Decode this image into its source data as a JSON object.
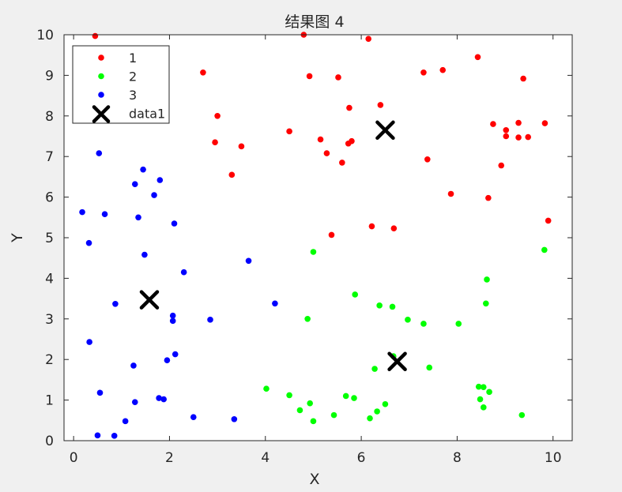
{
  "chart_data": {
    "type": "scatter",
    "title": "结果图 4",
    "xlabel": "X",
    "ylabel": "Y",
    "xlim": [
      -0.2,
      10.4
    ],
    "ylim": [
      0,
      10
    ],
    "xticks": [
      "0",
      "2",
      "4",
      "6",
      "8",
      "10"
    ],
    "yticks": [
      "0",
      "1",
      "2",
      "3",
      "4",
      "5",
      "6",
      "7",
      "8",
      "9",
      "10"
    ],
    "grid": false,
    "legend_position": "top-left",
    "series": [
      {
        "name": "1",
        "color": "#ff0000",
        "marker": "dot",
        "points": [
          [
            0.45,
            9.97
          ],
          [
            2.7,
            9.07
          ],
          [
            3.0,
            8.0
          ],
          [
            2.95,
            7.35
          ],
          [
            3.5,
            7.25
          ],
          [
            3.3,
            6.55
          ],
          [
            4.8,
            10.0
          ],
          [
            4.92,
            8.98
          ],
          [
            5.52,
            8.95
          ],
          [
            6.15,
            9.9
          ],
          [
            4.5,
            7.62
          ],
          [
            5.15,
            7.42
          ],
          [
            5.28,
            7.08
          ],
          [
            5.75,
            8.2
          ],
          [
            5.8,
            7.38
          ],
          [
            5.73,
            7.32
          ],
          [
            5.6,
            6.85
          ],
          [
            6.4,
            8.27
          ],
          [
            7.3,
            9.07
          ],
          [
            7.7,
            9.13
          ],
          [
            8.43,
            9.45
          ],
          [
            9.38,
            8.92
          ],
          [
            7.38,
            6.93
          ],
          [
            8.75,
            7.8
          ],
          [
            9.28,
            7.83
          ],
          [
            9.83,
            7.82
          ],
          [
            9.02,
            7.65
          ],
          [
            9.02,
            7.5
          ],
          [
            9.28,
            7.47
          ],
          [
            9.48,
            7.48
          ],
          [
            8.92,
            6.78
          ],
          [
            7.87,
            6.08
          ],
          [
            8.65,
            5.98
          ],
          [
            9.9,
            5.42
          ],
          [
            6.22,
            5.28
          ],
          [
            6.68,
            5.23
          ],
          [
            5.38,
            5.07
          ]
        ]
      },
      {
        "name": "2",
        "color": "#00ff00",
        "marker": "dot",
        "points": [
          [
            9.82,
            4.7
          ],
          [
            5.0,
            4.65
          ],
          [
            8.62,
            3.97
          ],
          [
            5.87,
            3.6
          ],
          [
            6.38,
            3.33
          ],
          [
            6.65,
            3.3
          ],
          [
            8.6,
            3.38
          ],
          [
            4.88,
            3.0
          ],
          [
            6.97,
            2.98
          ],
          [
            7.3,
            2.88
          ],
          [
            8.03,
            2.88
          ],
          [
            6.67,
            2.08
          ],
          [
            6.28,
            1.77
          ],
          [
            7.42,
            1.8
          ],
          [
            8.45,
            1.33
          ],
          [
            8.55,
            1.32
          ],
          [
            8.67,
            1.2
          ],
          [
            8.48,
            1.02
          ],
          [
            8.55,
            0.82
          ],
          [
            9.35,
            0.63
          ],
          [
            4.02,
            1.28
          ],
          [
            4.5,
            1.12
          ],
          [
            4.93,
            0.92
          ],
          [
            4.72,
            0.75
          ],
          [
            5.0,
            0.48
          ],
          [
            5.43,
            0.63
          ],
          [
            5.68,
            1.1
          ],
          [
            5.85,
            1.05
          ],
          [
            6.5,
            0.9
          ],
          [
            6.33,
            0.72
          ],
          [
            6.18,
            0.55
          ]
        ]
      },
      {
        "name": "3",
        "color": "#0000ff",
        "marker": "dot",
        "points": [
          [
            0.53,
            7.08
          ],
          [
            1.45,
            6.68
          ],
          [
            1.8,
            6.42
          ],
          [
            1.28,
            6.32
          ],
          [
            1.68,
            6.05
          ],
          [
            0.18,
            5.63
          ],
          [
            0.65,
            5.58
          ],
          [
            1.35,
            5.5
          ],
          [
            2.1,
            5.35
          ],
          [
            0.32,
            4.87
          ],
          [
            1.48,
            4.58
          ],
          [
            3.65,
            4.43
          ],
          [
            2.3,
            4.15
          ],
          [
            0.87,
            3.37
          ],
          [
            4.2,
            3.38
          ],
          [
            2.07,
            3.08
          ],
          [
            2.07,
            2.95
          ],
          [
            2.85,
            2.98
          ],
          [
            0.33,
            2.43
          ],
          [
            2.12,
            2.13
          ],
          [
            1.95,
            1.98
          ],
          [
            1.25,
            1.85
          ],
          [
            0.55,
            1.18
          ],
          [
            1.78,
            1.05
          ],
          [
            1.88,
            1.02
          ],
          [
            1.28,
            0.95
          ],
          [
            2.5,
            0.58
          ],
          [
            3.35,
            0.53
          ],
          [
            1.08,
            0.48
          ],
          [
            0.5,
            0.13
          ],
          [
            0.85,
            0.12
          ]
        ]
      },
      {
        "name": "data1",
        "color": "#000000",
        "marker": "x",
        "points": [
          [
            6.5,
            7.65
          ],
          [
            1.58,
            3.47
          ],
          [
            6.75,
            1.95
          ]
        ]
      }
    ]
  }
}
